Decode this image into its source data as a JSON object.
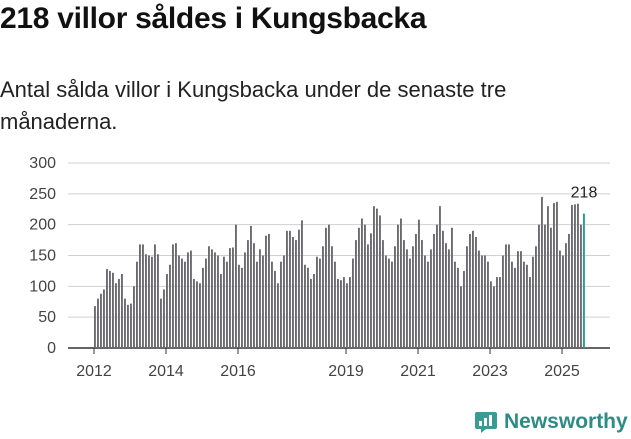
{
  "title": "218 villor såldes i Kungsbacka",
  "subtitle": "Antal sålda villor i Kungsbacka under de senaste tre månaderna.",
  "brand": "Newsworthy",
  "colors": {
    "bar": "#6b6b70",
    "highlight": "#2a9d8f",
    "grid": "#d0d0d0",
    "brand": "#2e8b85"
  },
  "chart_data": {
    "type": "bar",
    "title": "218 villor såldes i Kungsbacka",
    "xlabel": "",
    "ylabel": "",
    "ylim": [
      0,
      300
    ],
    "yticks": [
      0,
      50,
      100,
      150,
      200,
      250,
      300
    ],
    "xticks": [
      {
        "label": "2012",
        "index": 0
      },
      {
        "label": "2014",
        "index": 24
      },
      {
        "label": "2016",
        "index": 48
      },
      {
        "label": "2019",
        "index": 84
      },
      {
        "label": "2021",
        "index": 108
      },
      {
        "label": "2023",
        "index": 132
      },
      {
        "label": "2025",
        "index": 156
      }
    ],
    "start": "2012-01",
    "highlight_label": "218",
    "values": [
      68,
      80,
      88,
      95,
      128,
      125,
      122,
      105,
      112,
      120,
      80,
      70,
      72,
      100,
      140,
      168,
      168,
      152,
      150,
      148,
      168,
      152,
      80,
      95,
      120,
      135,
      168,
      170,
      150,
      145,
      140,
      155,
      158,
      112,
      108,
      105,
      130,
      145,
      165,
      160,
      155,
      150,
      120,
      148,
      140,
      162,
      163,
      200,
      135,
      130,
      155,
      175,
      198,
      170,
      140,
      160,
      150,
      182,
      185,
      140,
      125,
      105,
      140,
      150,
      190,
      190,
      180,
      175,
      192,
      207,
      135,
      130,
      112,
      120,
      148,
      145,
      165,
      195,
      200,
      165,
      140,
      112,
      110,
      115,
      105,
      115,
      145,
      175,
      195,
      210,
      200,
      168,
      186,
      230,
      226,
      215,
      175,
      150,
      145,
      140,
      165,
      200,
      210,
      175,
      160,
      145,
      165,
      185,
      208,
      175,
      150,
      140,
      160,
      185,
      200,
      230,
      190,
      170,
      160,
      195,
      140,
      130,
      100,
      125,
      165,
      185,
      190,
      180,
      158,
      150,
      150,
      140,
      108,
      100,
      115,
      115,
      150,
      168,
      168,
      140,
      130,
      157,
      157,
      140,
      135,
      115,
      148,
      165,
      200,
      245,
      200,
      230,
      195,
      235,
      237,
      158,
      150,
      170,
      185,
      232,
      233,
      234,
      200,
      218
    ]
  }
}
